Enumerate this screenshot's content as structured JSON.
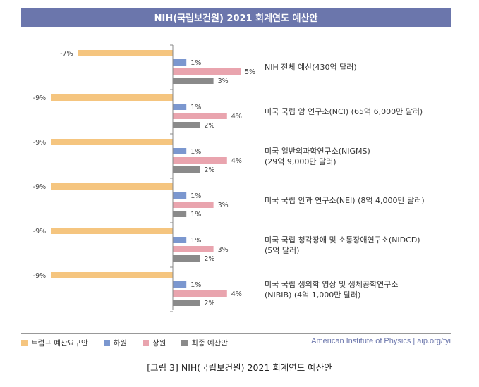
{
  "title": "NIH(국립보건원) 2021 회계연도 예산안",
  "caption": "[그림 3] NIH(국립보건원) 2021 회계연도 예산안",
  "source": "American Institute of Physics | aip.org/fyi",
  "colors": {
    "trump": "#f5c57f",
    "house": "#7b97cf",
    "senate": "#e9a4ae",
    "final": "#8a8a8a",
    "header": "#6b76ac"
  },
  "chart_data": {
    "type": "bar",
    "orientation": "horizontal",
    "categories": [
      [
        "NIH 전체 예산(430억 달러)"
      ],
      [
        "미국 국립 암 연구소(NCI) (65억 6,000만 달러)"
      ],
      [
        "미국 일반의과학연구소(NIGMS)",
        "(29억 9,000만 달러)"
      ],
      [
        "미국 국립 안과 연구소(NEI) (8억 4,000만 달러)"
      ],
      [
        "미국 국립 청각장애 및 소통장애연구소(NIDCD)",
        "(5억 달러)"
      ],
      [
        "미국 국립 생의학 영상 및 생체공학연구소",
        "(NIBIB) (4억 1,000만 달러)"
      ]
    ],
    "series": [
      {
        "name": "트럼프 예산요구안",
        "color": "#f5c57f",
        "values": [
          -7,
          -9,
          -9,
          -9,
          -9,
          -9
        ],
        "labels": [
          "-7%",
          "-9%",
          "-9%",
          "-9%",
          "-9%",
          "-9%"
        ]
      },
      {
        "name": "하원",
        "color": "#7b97cf",
        "values": [
          1,
          1,
          1,
          1,
          1,
          1
        ],
        "labels": [
          "1%",
          "1%",
          "1%",
          "1%",
          "1%",
          "1%"
        ]
      },
      {
        "name": "상원",
        "color": "#e9a4ae",
        "values": [
          5,
          4,
          4,
          3,
          3,
          4
        ],
        "labels": [
          "5%",
          "4%",
          "4%",
          "3%",
          "3%",
          "4%"
        ]
      },
      {
        "name": "최종 예산안",
        "color": "#8a8a8a",
        "values": [
          3,
          2,
          2,
          1,
          2,
          2
        ],
        "labels": [
          "3%",
          "2%",
          "2%",
          "1%",
          "2%",
          "2%"
        ]
      }
    ],
    "xlim": [
      -9,
      5
    ],
    "legend": "bottom-left",
    "grid": false
  }
}
